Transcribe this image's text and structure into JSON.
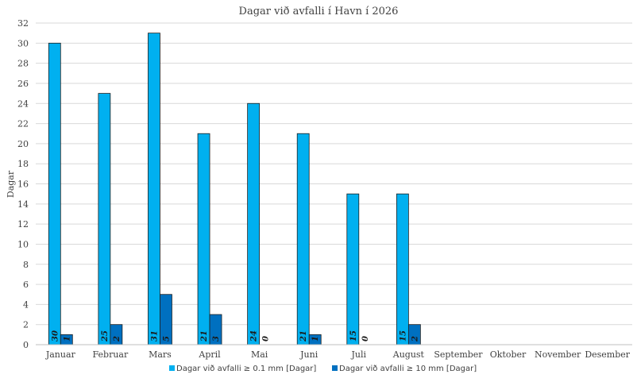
{
  "chart_data": {
    "type": "bar",
    "title": "Dagar við avfalli í Havn í 2026",
    "xlabel": "",
    "ylabel": "Dagar",
    "ylim": [
      0,
      32
    ],
    "ytick_step": 2,
    "grid": true,
    "legend_position": "bottom",
    "categories": [
      "Januar",
      "Februar",
      "Mars",
      "April",
      "Mai",
      "Juni",
      "Juli",
      "August",
      "September",
      "Oktober",
      "November",
      "Desember"
    ],
    "series": [
      {
        "name": "Dagar við avfalli ≥ 0.1 mm [Dagar]",
        "color": "#00b0f0",
        "values": [
          30,
          25,
          31,
          21,
          24,
          21,
          15,
          15,
          null,
          null,
          null,
          null
        ]
      },
      {
        "name": "Dagar við avfalli ≥ 10 mm [Dagar]",
        "color": "#0070c0",
        "values": [
          1,
          2,
          5,
          3,
          0,
          1,
          0,
          2,
          null,
          null,
          null,
          null
        ]
      }
    ]
  }
}
